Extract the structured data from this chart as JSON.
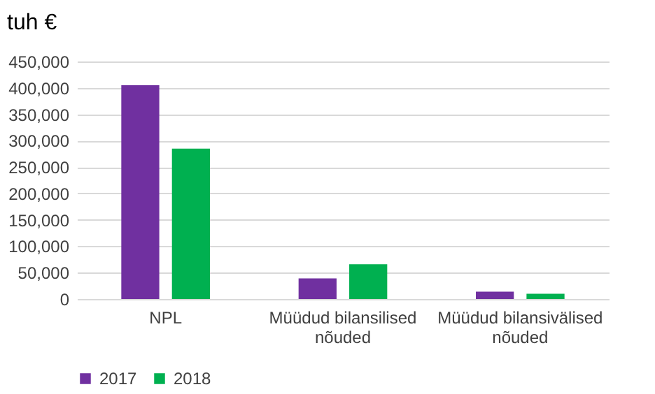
{
  "chart_data": {
    "type": "bar",
    "ylabel": "tuh €",
    "categories": [
      "NPL",
      "Müüdud bilansilised nõuded",
      "Müüdud bilansivälised nõuded"
    ],
    "series": [
      {
        "name": "2017",
        "color": "#7030a0",
        "values": [
          405000,
          39000,
          14000
        ]
      },
      {
        "name": "2018",
        "color": "#00b050",
        "values": [
          285000,
          66000,
          10000
        ]
      }
    ],
    "ylim": [
      0,
      450000
    ],
    "yticks": [
      0,
      {
        "value": 50000,
        "label": "50,000"
      },
      {
        "value": 100000,
        "label": "100,000"
      },
      {
        "value": 150000,
        "label": "150,000"
      },
      {
        "value": 200000,
        "label": "200,000"
      },
      {
        "value": 250000,
        "label": "250,000"
      },
      {
        "value": 300000,
        "label": "300,000"
      },
      {
        "value": 350000,
        "label": "350,000"
      },
      {
        "value": 400000,
        "label": "400,000"
      },
      {
        "value": 450000,
        "label": "450,000"
      }
    ],
    "grid": "y",
    "legend": "bottom"
  }
}
